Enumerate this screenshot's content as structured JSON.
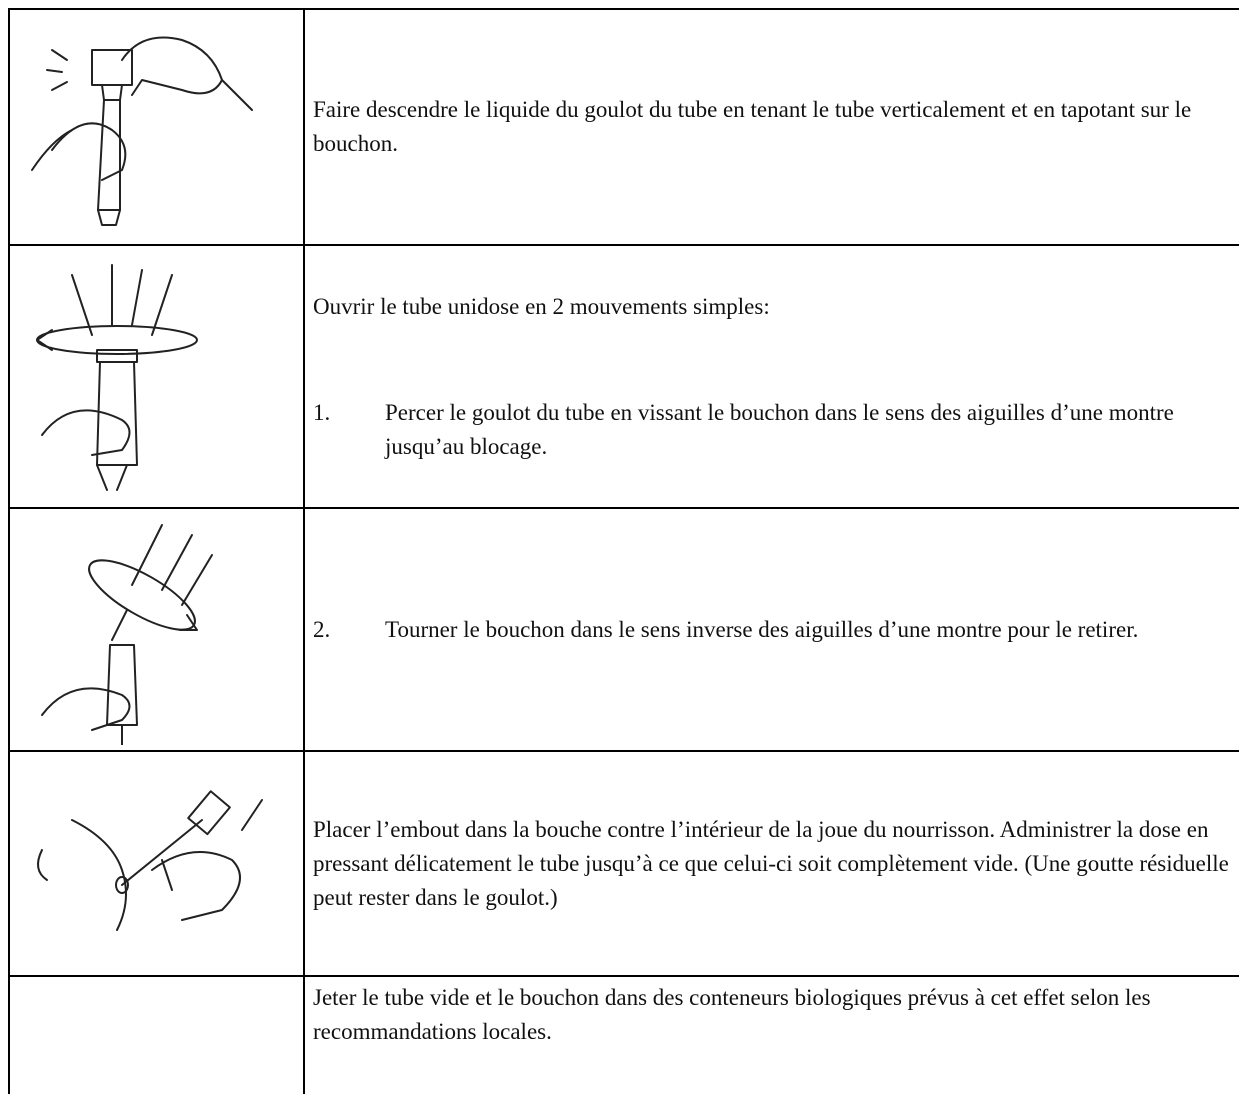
{
  "table": {
    "rows": [
      {
        "text": "Faire descendre le liquide du goulot du tube en tenant le tube verticalement et en tapotant sur le bouchon."
      },
      {
        "text": "Ouvrir le tube unidose en 2 mouvements simples:",
        "steps": [
          {
            "number": "1.",
            "text": "Percer le goulot du tube en vissant le bouchon dans le sens des aiguilles d’une montre jusqu’au blocage."
          }
        ]
      },
      {
        "steps": [
          {
            "number": "2.",
            "text": "Tourner le bouchon dans le sens inverse des aiguilles d’une montre pour le retirer."
          }
        ]
      },
      {
        "text": "Placer l’embout dans la bouche contre l’intérieur de la joue du nourrisson. Administrer la dose en pressant délicatement le tube jusqu’à ce que celui-ci soit complètement vide. (Une goutte résiduelle peut rester dans le goulot.)"
      },
      {
        "text": "Jeter le tube vide et le bouchon dans des conteneurs biologiques prévus à cet effet selon les recommandations locales."
      }
    ]
  }
}
